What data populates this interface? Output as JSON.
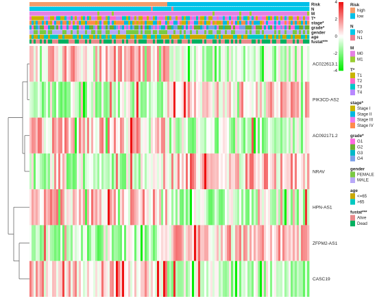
{
  "chart_data": {
    "type": "heatmap",
    "title": "",
    "rows": [
      "AC022613.1",
      "PIK3CD-AS2",
      "AC092171.2",
      "NRAV",
      "HPN-AS1",
      "ZFPM2-AS1",
      "CASC19"
    ],
    "row_dendrogram": true,
    "column_split_fraction": 0.49,
    "groups": [
      "high",
      "low"
    ],
    "color_scale": {
      "ticks": [
        4,
        2,
        0,
        -2,
        -4
      ],
      "range": [
        -4,
        4
      ],
      "colors": [
        "#00ee00",
        "#ffffff",
        "#ee1111"
      ]
    },
    "annotations": [
      {
        "name": "Risk",
        "levels": [
          "high",
          "low"
        ],
        "colors": [
          "#f39c6b",
          "#00bfe8"
        ]
      },
      {
        "name": "N",
        "levels": [
          "N0",
          "N1"
        ],
        "colors": [
          "#00c8e8",
          "#ee7f8f"
        ]
      },
      {
        "name": "M",
        "levels": [
          "M0",
          "M1"
        ],
        "colors": [
          "#e580e5",
          "#9acd32"
        ]
      },
      {
        "name": "T*",
        "levels": [
          "T1",
          "T2",
          "T3",
          "T4"
        ],
        "colors": [
          "#c8b400",
          "#ff69c8",
          "#00c8c8",
          "#b888ff"
        ]
      },
      {
        "name": "stage*",
        "levels": [
          "Stage I",
          "Stage II",
          "Stage III",
          "Stage IV"
        ],
        "colors": [
          "#c8b400",
          "#00b8e0",
          "#ee79ee",
          "#ff8a4a"
        ]
      },
      {
        "name": "grade*",
        "levels": [
          "G1",
          "G2",
          "G3",
          "G4"
        ],
        "colors": [
          "#ff69e0",
          "#6ab030",
          "#00b8c8",
          "#7b9fe8"
        ]
      },
      {
        "name": "gender",
        "levels": [
          "FEMALE",
          "MALE"
        ],
        "colors": [
          "#7ac943",
          "#b8a8f8"
        ]
      },
      {
        "name": "age",
        "levels": [
          "<=65",
          ">65"
        ],
        "colors": [
          "#c9a800",
          "#00c8c0"
        ]
      },
      {
        "name": "fustat***",
        "levels": [
          "Alive",
          "Dead"
        ],
        "colors": [
          "#e8888a",
          "#00b060"
        ]
      }
    ]
  }
}
